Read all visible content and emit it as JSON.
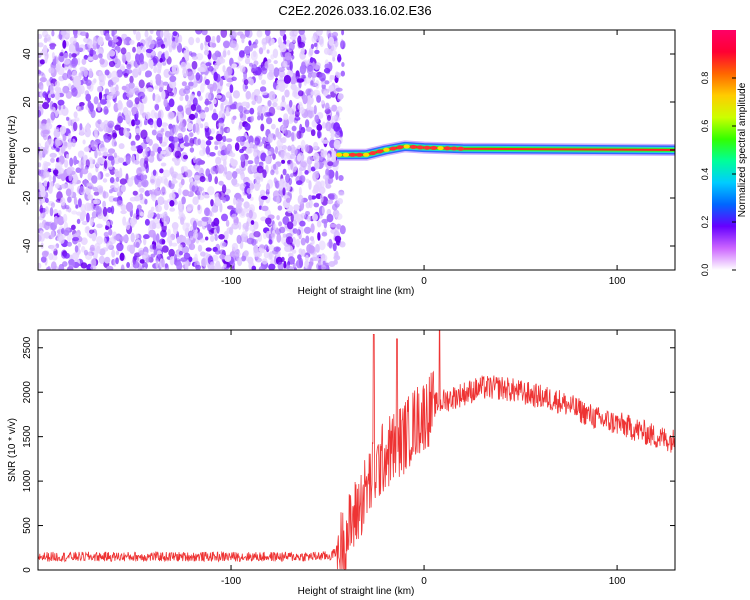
{
  "figure_title": "C2E2.2026.033.16.02.E36",
  "chart_data": [
    {
      "type": "heatmap",
      "xlabel": "Height of straight line (km)",
      "ylabel": "Frequency (Hz)",
      "xlim": [
        -200,
        130
      ],
      "ylim": [
        -50,
        50
      ],
      "x_ticks": [
        -100,
        0,
        100
      ],
      "y_ticks": [
        -40,
        -20,
        0,
        20,
        40
      ],
      "x_ticklabels": [
        "-100",
        "0",
        "100"
      ],
      "y_ticklabels": [
        "-40",
        "-20",
        "0",
        "20",
        "40"
      ],
      "noise_region_x": [
        -200,
        -45
      ],
      "signal_line": [
        {
          "x": -45,
          "y": -2
        },
        {
          "x": -30,
          "y": -2
        },
        {
          "x": -20,
          "y": 0
        },
        {
          "x": -10,
          "y": 1.5
        },
        {
          "x": 0,
          "y": 1
        },
        {
          "x": 20,
          "y": 0.5
        },
        {
          "x": 130,
          "y": 0
        }
      ],
      "colorbar": {
        "label": "Normalized spectral amplitude",
        "range": [
          0,
          1
        ],
        "ticks": [
          0,
          0.2,
          0.4,
          0.6,
          0.8
        ],
        "ticklabels": [
          "0.0",
          "0.2",
          "0.4",
          "0.6",
          "0.8"
        ],
        "colors": [
          "#ffffff",
          "#cc66ff",
          "#6600ff",
          "#0066ff",
          "#00ccff",
          "#00ff99",
          "#33ff00",
          "#ccff00",
          "#ffcc00",
          "#ff6600",
          "#ff0033",
          "#ff0066"
        ]
      }
    },
    {
      "type": "line",
      "xlabel": "Height of straight line (km)",
      "ylabel": "SNR (10 * v/v)",
      "xlim": [
        -200,
        130
      ],
      "ylim": [
        0,
        2700
      ],
      "x_ticks": [
        -100,
        0,
        100
      ],
      "y_ticks": [
        0,
        500,
        1000,
        1500,
        2000,
        2500
      ],
      "x_ticklabels": [
        "-100",
        "0",
        "100"
      ],
      "y_ticklabels": [
        "0",
        "500",
        "1000",
        "1500",
        "2000",
        "2500"
      ],
      "color": "#ee3333",
      "series": [
        {
          "name": "SNR",
          "x": [
            -200,
            -150,
            -100,
            -60,
            -48,
            -42,
            -35,
            -28,
            -20,
            -15,
            -10,
            -5,
            0,
            5,
            10,
            20,
            30,
            40,
            50,
            60,
            70,
            80,
            90,
            100,
            110,
            120,
            130
          ],
          "y": [
            150,
            150,
            150,
            150,
            160,
            300,
            650,
            1000,
            1300,
            1400,
            1500,
            1650,
            1750,
            1850,
            1900,
            1980,
            2050,
            2050,
            2000,
            1950,
            1900,
            1800,
            1700,
            1650,
            1580,
            1500,
            1450
          ]
        }
      ],
      "spikes": [
        {
          "x": -26,
          "y": 2650
        },
        {
          "x": -14,
          "y": 2600
        },
        {
          "x": 8,
          "y": 2700
        }
      ]
    }
  ]
}
